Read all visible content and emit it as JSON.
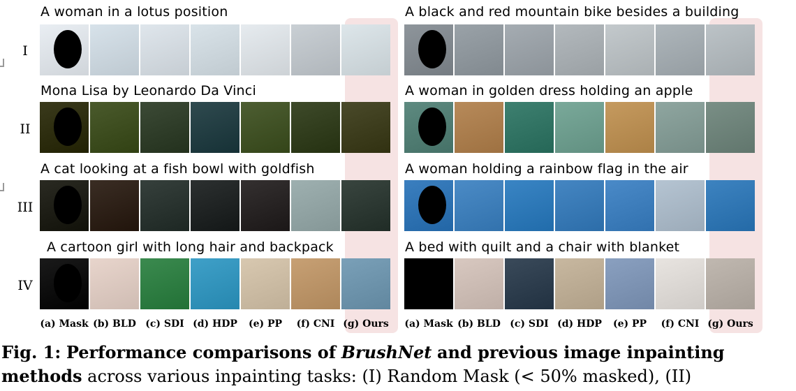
{
  "rows": [
    {
      "roman": "I",
      "left_prompt": "A woman in a lotus position",
      "right_prompt": "A black and red mountain bike besides a building",
      "left_palette": [
        "#e9eef3",
        "#d7e2ea",
        "#dfe6ec",
        "#d9e3e9",
        "#e6ebef",
        "#c9cfd4",
        "#dde6ea"
      ],
      "right_palette": [
        "#8e959b",
        "#9aa2a8",
        "#a5acb2",
        "#b3b9bd",
        "#c3c9cc",
        "#aeb6bb",
        "#bcc3c7"
      ]
    },
    {
      "roman": "II",
      "left_prompt": "Mona Lisa by Leonardo Da Vinci",
      "right_prompt": "A woman in golden dress holding an apple",
      "left_palette": [
        "#3a3a1c",
        "#4a5a2c",
        "#3c4a36",
        "#2f4a4f",
        "#4d5e32",
        "#3e4a2a",
        "#4a4a2a"
      ],
      "right_palette": [
        "#5e8a80",
        "#b78a5a",
        "#3e8070",
        "#7aa99a",
        "#c59a5f",
        "#8fa6a0",
        "#7a8f86"
      ]
    },
    {
      "roman": "III",
      "left_prompt": "A cat looking at a fish bowl with goldfish",
      "right_prompt": "A woman holding a rainbow flag in the air",
      "left_palette": [
        "#2a2a22",
        "#3a2d24",
        "#36403c",
        "#2c3030",
        "#343030",
        "#9eb0b0",
        "#39453f"
      ],
      "right_palette": [
        "#3b7fbf",
        "#4b8bc6",
        "#3a85c4",
        "#4586c2",
        "#4a8ac8",
        "#b5c4d2",
        "#3d83c0"
      ]
    },
    {
      "roman": "IV",
      "left_prompt": "A cartoon girl with long hair and backpack",
      "right_prompt": "A bed with quilt and a chair with blanket",
      "left_palette": [
        "#1a1a1a",
        "#e8d5cc",
        "#3b8a4f",
        "#3fa0c8",
        "#d8c8b0",
        "#c7a074",
        "#7aa0b8"
      ],
      "right_palette": [
        "#000000",
        "#d8c8c0",
        "#3a4a5a",
        "#c8b8a0",
        "#8aa0c0",
        "#e8e4e0",
        "#c0b8b0"
      ]
    }
  ],
  "column_labels": [
    "(a) Mask",
    "(b) BLD",
    "(c) SDI",
    "(d) HDP",
    "(e) PP",
    "(f) CNI",
    "(g) Ours"
  ],
  "caption": {
    "fig_label": "Fig. 1:",
    "bold_part_1": "Performance comparisons of",
    "method_name": "BrushNet",
    "bold_part_2": "and previous image inpainting methods",
    "rest": "across various inpainting tasks: (I) Random Mask (< 50% masked), (II)"
  }
}
